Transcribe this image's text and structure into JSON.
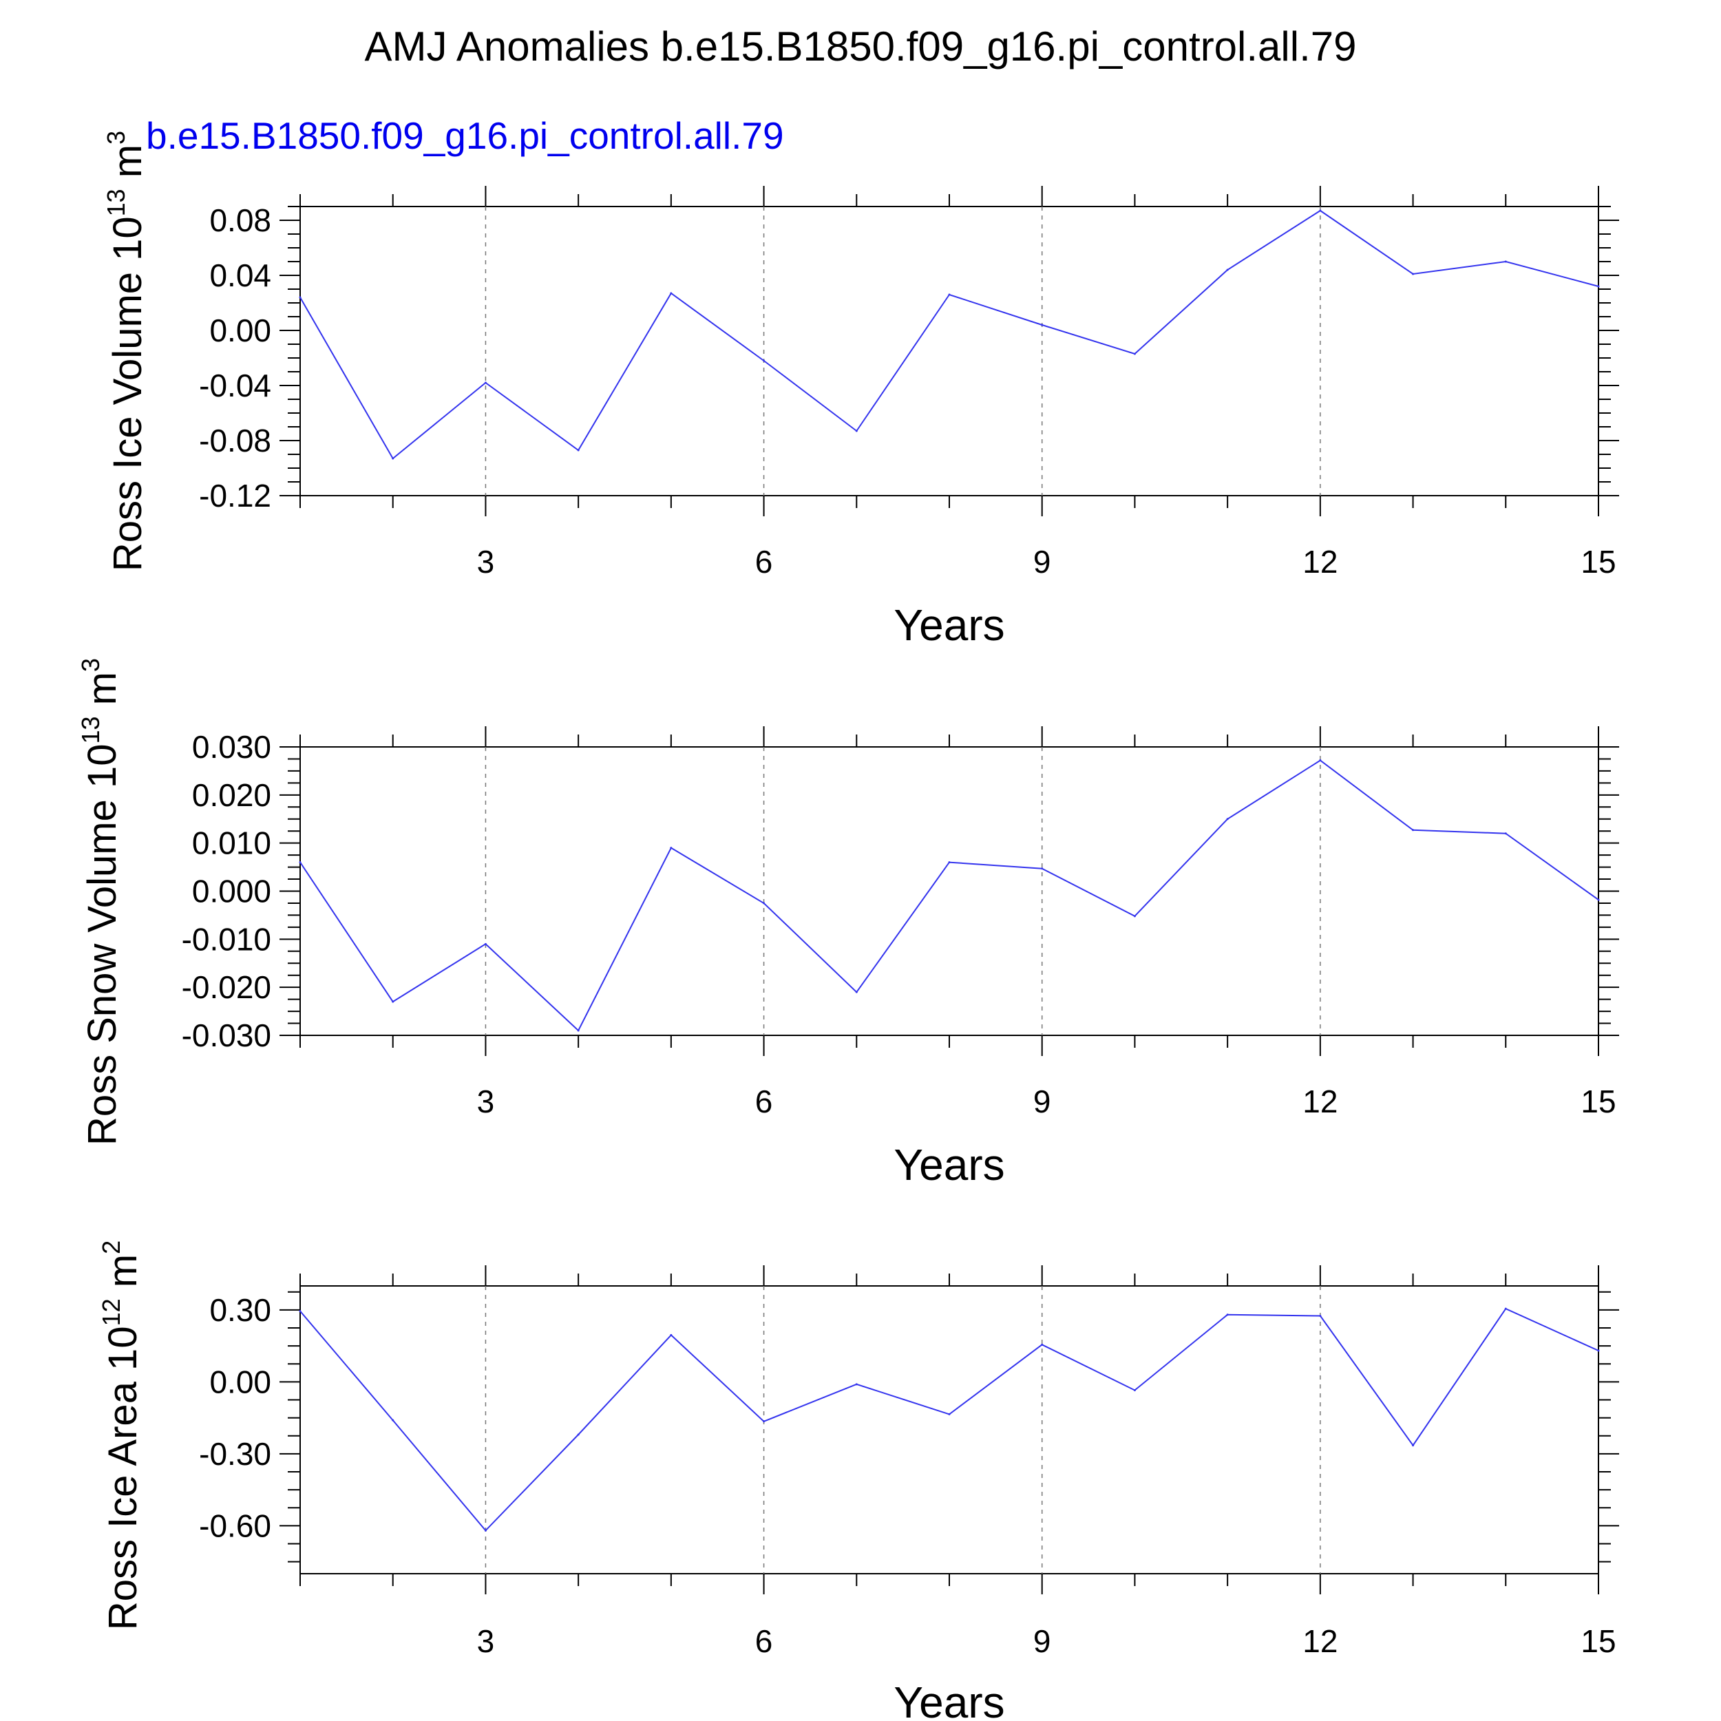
{
  "figure": {
    "title": "AMJ Anomalies b.e15.B1850.f09_g16.pi_control.all.79",
    "case_label": "b.e15.B1850.f09_g16.pi_control.all.79",
    "colors": {
      "series": "#3333ee",
      "case_label": "#0000ee",
      "axis": "#000000",
      "grid": "#777777"
    }
  },
  "chart_data": [
    {
      "type": "line",
      "xlabel": "Years",
      "ylabel": "Ross Ice Volume 10",
      "ylabel_power": "13",
      "ylabel_unit": "m",
      "ylabel_unit_power": "3",
      "xlim": [
        1,
        15
      ],
      "ylim": [
        -0.12,
        0.09
      ],
      "x_ticks": [
        3,
        6,
        9,
        12,
        15
      ],
      "y_ticks": [
        "0.08",
        "0.04",
        "0.00",
        "-0.04",
        "-0.08",
        "-0.12"
      ],
      "x": [
        1,
        2,
        3,
        4,
        5,
        6,
        7,
        8,
        9,
        10,
        11,
        12,
        13,
        14,
        15
      ],
      "series": [
        {
          "values": [
            0.024,
            -0.093,
            -0.038,
            -0.087,
            0.027,
            -0.022,
            -0.073,
            0.026,
            0.004,
            -0.017,
            0.044,
            0.087,
            0.041,
            0.05,
            0.032
          ]
        }
      ]
    },
    {
      "type": "line",
      "xlabel": "Years",
      "ylabel": "Ross Snow Volume 10",
      "ylabel_power": "13",
      "ylabel_unit": "m",
      "ylabel_unit_power": "3",
      "xlim": [
        1,
        15
      ],
      "ylim": [
        -0.03,
        0.03
      ],
      "x_ticks": [
        3,
        6,
        9,
        12,
        15
      ],
      "y_ticks": [
        "0.030",
        "0.020",
        "0.010",
        "0.000",
        "-0.010",
        "-0.020",
        "-0.030"
      ],
      "x": [
        1,
        2,
        3,
        4,
        5,
        6,
        7,
        8,
        9,
        10,
        11,
        12,
        13,
        14,
        15
      ],
      "series": [
        {
          "values": [
            0.006,
            -0.023,
            -0.011,
            -0.029,
            0.009,
            -0.0025,
            -0.021,
            0.006,
            0.0047,
            -0.0052,
            0.015,
            0.0272,
            0.0127,
            0.012,
            -0.0018
          ]
        }
      ]
    },
    {
      "type": "line",
      "xlabel": "Years",
      "ylabel": "Ross Ice Area 10",
      "ylabel_power": "12",
      "ylabel_unit": "m",
      "ylabel_unit_power": "2",
      "xlim": [
        1,
        15
      ],
      "ylim": [
        -0.8,
        0.4
      ],
      "x_ticks": [
        3,
        6,
        9,
        12,
        15
      ],
      "y_ticks": [
        "0.30",
        "0.00",
        "-0.30",
        "-0.60"
      ],
      "x": [
        1,
        2,
        3,
        4,
        5,
        6,
        7,
        8,
        9,
        10,
        11,
        12,
        13,
        14,
        15
      ],
      "series": [
        {
          "values": [
            0.295,
            -0.16,
            -0.62,
            -0.22,
            0.195,
            -0.165,
            -0.01,
            -0.135,
            0.155,
            -0.035,
            0.28,
            0.275,
            -0.265,
            0.305,
            0.13
          ]
        }
      ]
    }
  ]
}
